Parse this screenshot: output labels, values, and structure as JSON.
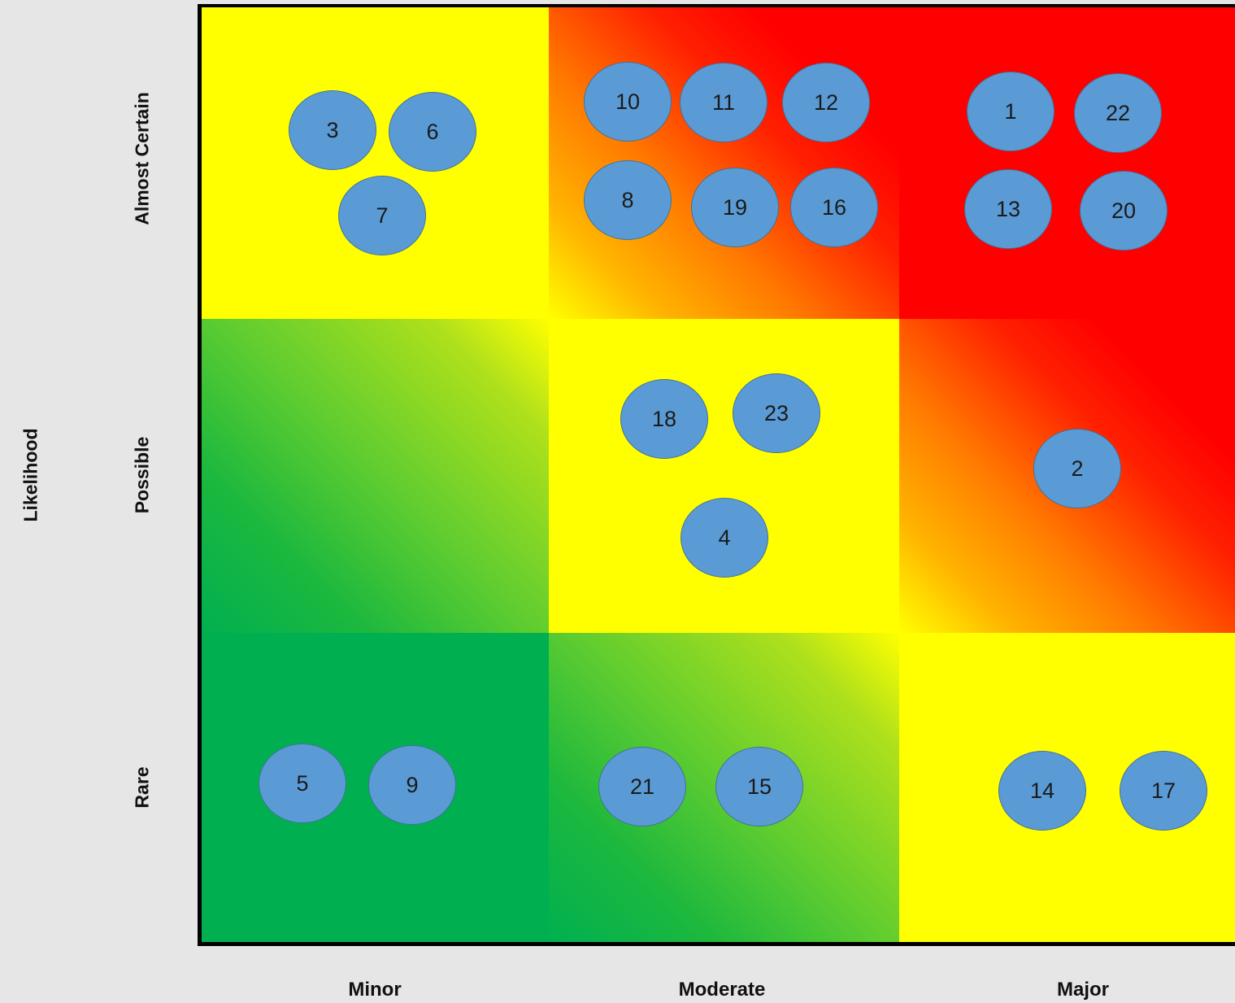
{
  "axis_title": "Likelihood",
  "likelihood_levels": [
    "Almost Certain",
    "Possible",
    "Rare"
  ],
  "consequence_levels": [
    "Minor",
    "Moderate",
    "Major"
  ],
  "colors": {
    "green": "#00b050",
    "light_green": "#92d050",
    "yellow": "#ffff00",
    "orange": "#ff8c00",
    "red": "#ff0000",
    "marker_fill": "#5b9bd5",
    "marker_border": "#41719c"
  },
  "cells": [
    {
      "likelihood": "Almost Certain",
      "consequence": "Minor",
      "rating": "yellow"
    },
    {
      "likelihood": "Almost Certain",
      "consequence": "Moderate",
      "rating": "orange-red"
    },
    {
      "likelihood": "Almost Certain",
      "consequence": "Major",
      "rating": "red"
    },
    {
      "likelihood": "Possible",
      "consequence": "Minor",
      "rating": "green-yellow"
    },
    {
      "likelihood": "Possible",
      "consequence": "Moderate",
      "rating": "yellow"
    },
    {
      "likelihood": "Possible",
      "consequence": "Major",
      "rating": "orange-red"
    },
    {
      "likelihood": "Rare",
      "consequence": "Minor",
      "rating": "green"
    },
    {
      "likelihood": "Rare",
      "consequence": "Moderate",
      "rating": "green-yellow"
    },
    {
      "likelihood": "Rare",
      "consequence": "Major",
      "rating": "yellow"
    }
  ],
  "risks": [
    {
      "id": "3",
      "likelihood": "Almost Certain",
      "consequence": "Minor"
    },
    {
      "id": "6",
      "likelihood": "Almost Certain",
      "consequence": "Minor"
    },
    {
      "id": "7",
      "likelihood": "Almost Certain",
      "consequence": "Minor"
    },
    {
      "id": "10",
      "likelihood": "Almost Certain",
      "consequence": "Moderate"
    },
    {
      "id": "11",
      "likelihood": "Almost Certain",
      "consequence": "Moderate"
    },
    {
      "id": "12",
      "likelihood": "Almost Certain",
      "consequence": "Moderate"
    },
    {
      "id": "8",
      "likelihood": "Almost Certain",
      "consequence": "Moderate"
    },
    {
      "id": "19",
      "likelihood": "Almost Certain",
      "consequence": "Moderate"
    },
    {
      "id": "16",
      "likelihood": "Almost Certain",
      "consequence": "Moderate"
    },
    {
      "id": "1",
      "likelihood": "Almost Certain",
      "consequence": "Major"
    },
    {
      "id": "22",
      "likelihood": "Almost Certain",
      "consequence": "Major"
    },
    {
      "id": "13",
      "likelihood": "Almost Certain",
      "consequence": "Major"
    },
    {
      "id": "20",
      "likelihood": "Almost Certain",
      "consequence": "Major"
    },
    {
      "id": "18",
      "likelihood": "Possible",
      "consequence": "Moderate"
    },
    {
      "id": "23",
      "likelihood": "Possible",
      "consequence": "Moderate"
    },
    {
      "id": "4",
      "likelihood": "Possible",
      "consequence": "Moderate"
    },
    {
      "id": "2",
      "likelihood": "Possible",
      "consequence": "Major"
    },
    {
      "id": "5",
      "likelihood": "Rare",
      "consequence": "Minor"
    },
    {
      "id": "9",
      "likelihood": "Rare",
      "consequence": "Minor"
    },
    {
      "id": "21",
      "likelihood": "Rare",
      "consequence": "Moderate"
    },
    {
      "id": "15",
      "likelihood": "Rare",
      "consequence": "Moderate"
    },
    {
      "id": "14",
      "likelihood": "Rare",
      "consequence": "Major"
    },
    {
      "id": "17",
      "likelihood": "Rare",
      "consequence": "Major"
    }
  ]
}
